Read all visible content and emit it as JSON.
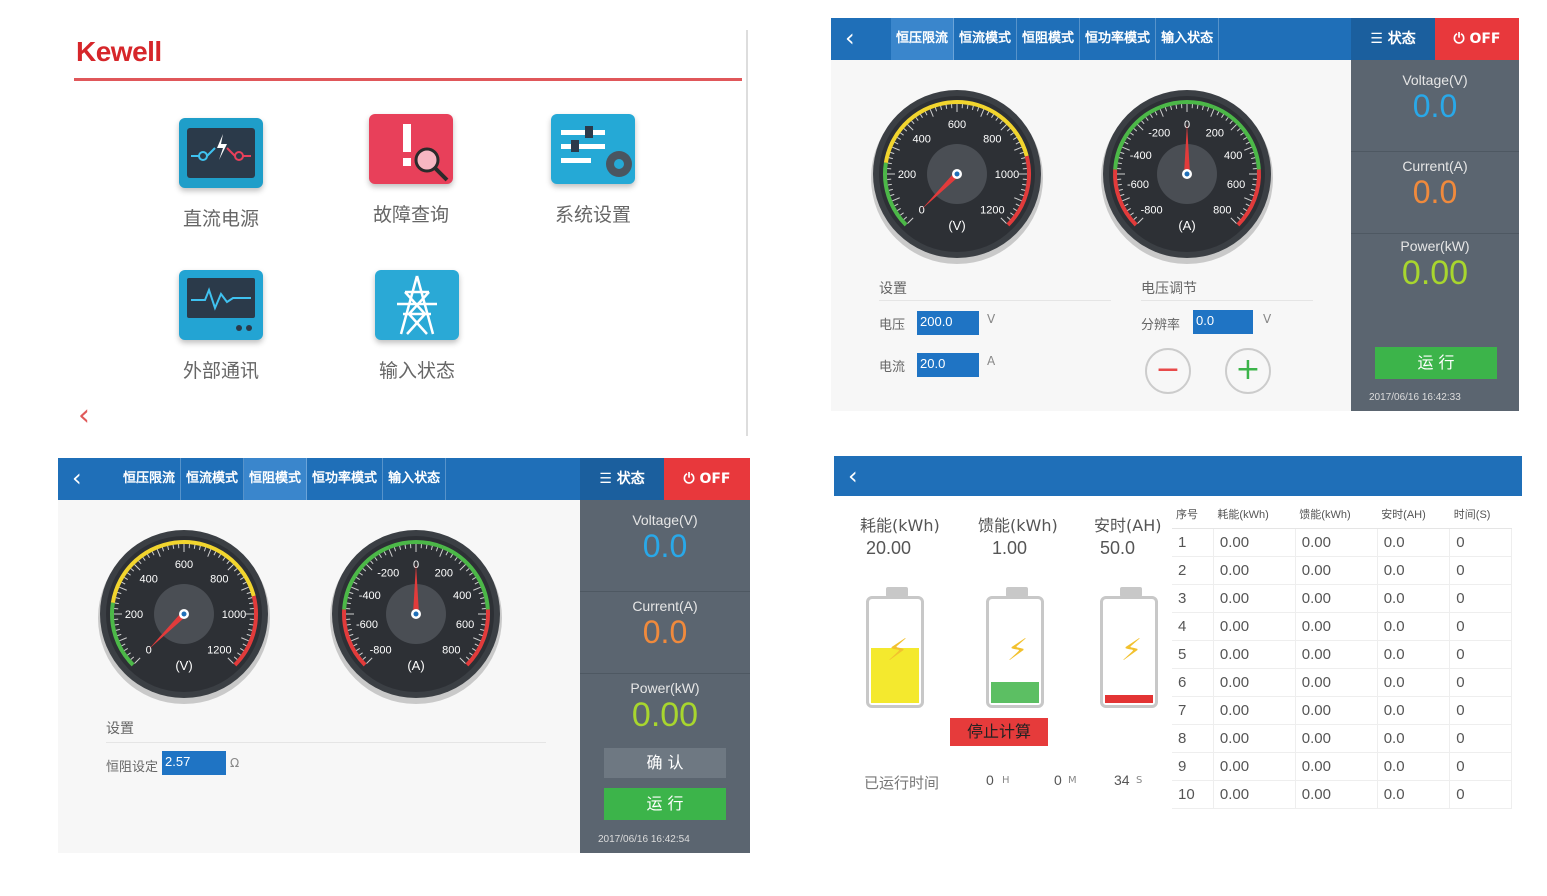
{
  "home": {
    "brand": "Kewell",
    "tiles": [
      {
        "label": "直流电源",
        "icon": "dc-power-icon",
        "color": "#1f9ec9"
      },
      {
        "label": "故障查询",
        "icon": "fault-search-icon",
        "color": "#e8405a"
      },
      {
        "label": "系统设置",
        "icon": "settings-sliders-icon",
        "color": "#25a9d6"
      },
      {
        "label": "外部通讯",
        "icon": "communication-monitor-icon",
        "color": "#23a4d3"
      },
      {
        "label": "输入状态",
        "icon": "power-tower-icon",
        "color": "#2aa9d6"
      }
    ]
  },
  "cv": {
    "tabs": [
      "恒压限流",
      "恒流模式",
      "恒阻模式",
      "恒功率模式",
      "输入状态"
    ],
    "active_tab": 0,
    "status_label": "☰ 状态",
    "off_label": "⏻ OFF",
    "gauge_v": {
      "unit": "(V)",
      "ticks": [
        "0",
        "200",
        "400",
        "600",
        "800",
        "1000",
        "1200"
      ],
      "value": 0
    },
    "gauge_a": {
      "unit": "(A)",
      "ticks": [
        "-800",
        "-600",
        "-400",
        "-200",
        "0",
        "200",
        "400",
        "600",
        "800"
      ],
      "value": 0
    },
    "settings_title": "设置",
    "adjust_title": "电压调节",
    "voltage_label": "电压",
    "voltage_value": "200.0",
    "voltage_unit": "V",
    "current_label": "电流",
    "current_value": "20.0",
    "current_unit": "A",
    "resolution_label": "分辨率",
    "resolution_value": "0.0",
    "resolution_unit": "V",
    "minus": "−",
    "plus": "+",
    "meters": {
      "voltage_label": "Voltage(V)",
      "voltage": "0.0",
      "current_label": "Current(A)",
      "current": "0.0",
      "power_label": "Power(kW)",
      "power": "0.00"
    },
    "run_label": "运 行",
    "timestamp": "2017/06/16 16:42:33"
  },
  "cr": {
    "tabs": [
      "恒压限流",
      "恒流模式",
      "恒阻模式",
      "恒功率模式",
      "输入状态"
    ],
    "active_tab": 2,
    "status_label": "☰ 状态",
    "off_label": "⏻ OFF",
    "settings_title": "设置",
    "resistance_label": "恒阻设定",
    "resistance_value": "2.57",
    "resistance_unit": "Ω",
    "meters": {
      "voltage_label": "Voltage(V)",
      "voltage": "0.0",
      "current_label": "Current(A)",
      "current": "0.0",
      "power_label": "Power(kW)",
      "power": "0.00"
    },
    "confirm_label": "确 认",
    "run_label": "运 行",
    "timestamp": "2017/06/16 16:42:54"
  },
  "energy": {
    "stats": [
      {
        "label": "耗能(kWh)",
        "value": "20.00",
        "fill_fraction": 0.52,
        "fill_color": "#f4e92e"
      },
      {
        "label": "馈能(kWh)",
        "value": "1.00",
        "fill_fraction": 0.2,
        "fill_color": "#5cbf63"
      },
      {
        "label": "安时(AH)",
        "value": "50.0",
        "fill_fraction": 0.08,
        "fill_color": "#e33434"
      }
    ],
    "stop_label": "停止计算",
    "runtime_label": "已运行时间",
    "hours": "0",
    "hours_unit": "H",
    "minutes": "0",
    "minutes_unit": "M",
    "seconds": "34",
    "seconds_unit": "S",
    "table_headers": [
      "序号",
      "耗能(kWh)",
      "馈能(kWh)",
      "安时(AH)",
      "时间(S)"
    ],
    "rows": [
      [
        "1",
        "0.00",
        "0.00",
        "0.0",
        "0"
      ],
      [
        "2",
        "0.00",
        "0.00",
        "0.0",
        "0"
      ],
      [
        "3",
        "0.00",
        "0.00",
        "0.0",
        "0"
      ],
      [
        "4",
        "0.00",
        "0.00",
        "0.0",
        "0"
      ],
      [
        "5",
        "0.00",
        "0.00",
        "0.0",
        "0"
      ],
      [
        "6",
        "0.00",
        "0.00",
        "0.0",
        "0"
      ],
      [
        "7",
        "0.00",
        "0.00",
        "0.0",
        "0"
      ],
      [
        "8",
        "0.00",
        "0.00",
        "0.0",
        "0"
      ],
      [
        "9",
        "0.00",
        "0.00",
        "0.0",
        "0"
      ],
      [
        "10",
        "0.00",
        "0.00",
        "0.0",
        "0"
      ]
    ]
  },
  "colors": {
    "bar": "#1f6fb8",
    "off": "#e8383c",
    "side": "#5b6570",
    "volt": "#29a8e8",
    "curr": "#f08a3c",
    "power": "#a8d62e",
    "run": "#3cb44a"
  }
}
